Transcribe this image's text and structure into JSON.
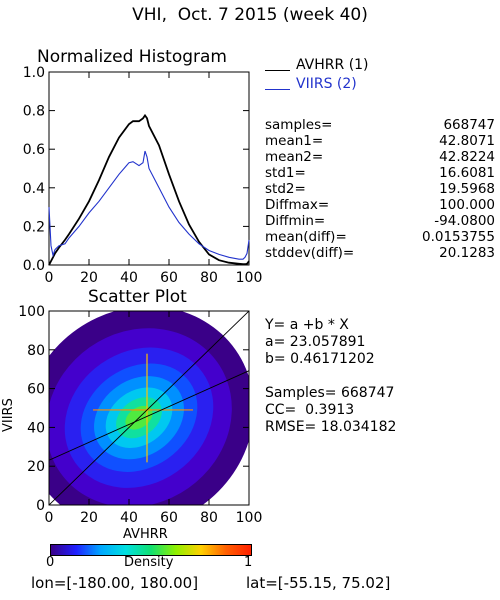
{
  "page_title": "VHI,  Oct. 7 2015 (week 40)",
  "colors": {
    "avhrr": "#000000",
    "viirs": "#2233cc"
  },
  "stats": [
    {
      "label": "samples=",
      "value": "668747"
    },
    {
      "label": "mean1=",
      "value": "42.8071"
    },
    {
      "label": "mean2=",
      "value": "42.8224"
    },
    {
      "label": "std1=",
      "value": "16.6081"
    },
    {
      "label": "std2=",
      "value": "19.5968"
    },
    {
      "label": "Diffmax=",
      "value": "100.000"
    },
    {
      "label": "Diffmin=",
      "value": "-94.0800"
    },
    {
      "label": "mean(diff)=",
      "value": "0.0153755"
    },
    {
      "label": "stddev(diff)=",
      "value": "20.1283"
    }
  ],
  "regression": {
    "equation": "Y= a +b * X",
    "a_text": "a= 23.057891",
    "b_text": "b= 0.46171202",
    "a": 23.057891,
    "b": 0.46171202,
    "samples_text": "Samples= 668747",
    "cc_text": "CC=  0.3913",
    "rmse_text": "RMSE= 18.034182"
  },
  "colorbar": {
    "label": "Density",
    "min_label": "0",
    "max_label": "1",
    "stops": [
      "#3a0088",
      "#2020ff",
      "#00a8ff",
      "#00e0e0",
      "#10e070",
      "#90f000",
      "#ffd000",
      "#ff6000",
      "#ff2000"
    ]
  },
  "footer": {
    "lon_text": "lon=[-180.00, 180.00]",
    "lat_text": "lat=[-55.15, 75.02]"
  },
  "chart_data": [
    {
      "type": "line",
      "title": "Normalized Histogram",
      "xlabel": "",
      "ylabel": "",
      "xlim": [
        0,
        100
      ],
      "ylim": [
        0,
        1.0
      ],
      "x_ticks": [
        "0",
        "20",
        "40",
        "60",
        "80",
        "100"
      ],
      "y_ticks": [
        "0.0",
        "0.2",
        "0.4",
        "0.6",
        "0.8",
        "1.0"
      ],
      "legend_position": "right-outside",
      "x": [
        0,
        1,
        2,
        3,
        5,
        8,
        10,
        15,
        20,
        25,
        30,
        35,
        40,
        42,
        45,
        47,
        48,
        49,
        50,
        55,
        60,
        65,
        70,
        75,
        80,
        85,
        90,
        95,
        97,
        98,
        99,
        100
      ],
      "series": [
        {
          "name": "AVHRR (1)",
          "values": [
            0.0,
            0.02,
            0.04,
            0.06,
            0.09,
            0.13,
            0.16,
            0.24,
            0.33,
            0.44,
            0.56,
            0.66,
            0.73,
            0.745,
            0.745,
            0.76,
            0.775,
            0.76,
            0.72,
            0.62,
            0.47,
            0.33,
            0.21,
            0.12,
            0.055,
            0.025,
            0.012,
            0.006,
            0.004,
            0.004,
            0.006,
            0.02
          ]
        },
        {
          "name": "VIIRS (2)",
          "values": [
            0.3,
            0.1,
            0.05,
            0.08,
            0.1,
            0.11,
            0.14,
            0.2,
            0.27,
            0.33,
            0.4,
            0.47,
            0.53,
            0.535,
            0.515,
            0.53,
            0.59,
            0.56,
            0.5,
            0.4,
            0.3,
            0.22,
            0.16,
            0.11,
            0.075,
            0.055,
            0.04,
            0.03,
            0.03,
            0.04,
            0.06,
            0.13
          ]
        }
      ]
    },
    {
      "type": "heatmap",
      "title": "Scatter Plot",
      "xlabel": "AVHRR",
      "ylabel": "VIIRS",
      "xlim": [
        0,
        100
      ],
      "ylim": [
        0,
        100
      ],
      "x_ticks": [
        "0",
        "20",
        "40",
        "60",
        "80",
        "100"
      ],
      "y_ticks": [
        "0",
        "20",
        "40",
        "60",
        "80",
        "100"
      ],
      "density_center": [
        45,
        45
      ],
      "density_min": 0,
      "density_max": 1,
      "fit_line": {
        "a": 23.057891,
        "b": 0.46171202
      }
    }
  ]
}
